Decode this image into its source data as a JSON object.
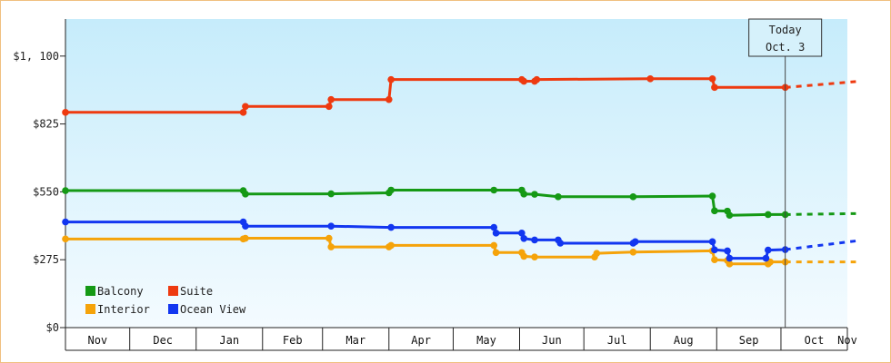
{
  "chart_data": {
    "type": "line",
    "title": "",
    "xlabel": "",
    "ylabel": "",
    "x_axis": "date",
    "xlim": [
      "2024-11-01",
      "2025-11-01"
    ],
    "x_tick_labels": [
      "Nov",
      "Dec",
      "Jan",
      "Feb",
      "Mar",
      "Apr",
      "May",
      "Jun",
      "Jul",
      "Aug",
      "Sep",
      "Oct",
      "Nov"
    ],
    "ylim": [
      0,
      1250
    ],
    "y_ticks": [
      0,
      275,
      550,
      825,
      1100
    ],
    "y_tick_labels": [
      "$0",
      "$275",
      "$550",
      "$825",
      "$1, 100"
    ],
    "step": true,
    "grid": false,
    "background": "light-blue gradient",
    "legend_position": "bottom-left",
    "today": {
      "line1": "Today",
      "line2": "Oct. 3",
      "date": "2025-10-03"
    },
    "series": [
      {
        "name": "Balcony",
        "color": "#159915",
        "points": [
          [
            "2024-11-01",
            555
          ],
          [
            "2025-01-23",
            555
          ],
          [
            "2025-01-24",
            541
          ],
          [
            "2025-03-05",
            542
          ],
          [
            "2025-04-01",
            546
          ],
          [
            "2025-04-02",
            557
          ],
          [
            "2025-05-20",
            557
          ],
          [
            "2025-06-02",
            557
          ],
          [
            "2025-06-03",
            541
          ],
          [
            "2025-06-08",
            540
          ],
          [
            "2025-06-19",
            530
          ],
          [
            "2025-07-24",
            530
          ],
          [
            "2025-08-30",
            533
          ],
          [
            "2025-08-31",
            473
          ],
          [
            "2025-09-06",
            472
          ],
          [
            "2025-09-07",
            455
          ],
          [
            "2025-09-25",
            458
          ],
          [
            "2025-10-03",
            458
          ]
        ],
        "forecast": [
          [
            "2025-10-03",
            458
          ],
          [
            "2025-11-05",
            462
          ]
        ]
      },
      {
        "name": "Suite",
        "color": "#ee3a10",
        "points": [
          [
            "2024-11-01",
            872
          ],
          [
            "2025-01-23",
            872
          ],
          [
            "2025-01-24",
            896
          ],
          [
            "2025-03-04",
            896
          ],
          [
            "2025-03-05",
            924
          ],
          [
            "2025-04-01",
            924
          ],
          [
            "2025-04-02",
            1005
          ],
          [
            "2025-06-02",
            1005
          ],
          [
            "2025-06-03",
            998
          ],
          [
            "2025-06-08",
            998
          ],
          [
            "2025-06-09",
            1005
          ],
          [
            "2025-08-01",
            1008
          ],
          [
            "2025-08-30",
            1008
          ],
          [
            "2025-08-31",
            973
          ],
          [
            "2025-10-03",
            973
          ]
        ],
        "forecast": [
          [
            "2025-10-03",
            973
          ],
          [
            "2025-11-05",
            997
          ]
        ]
      },
      {
        "name": "Interior",
        "color": "#f5a30a",
        "points": [
          [
            "2024-11-01",
            359
          ],
          [
            "2025-01-23",
            359
          ],
          [
            "2025-01-24",
            362
          ],
          [
            "2025-03-04",
            362
          ],
          [
            "2025-03-05",
            327
          ],
          [
            "2025-04-01",
            327
          ],
          [
            "2025-04-02",
            333
          ],
          [
            "2025-05-20",
            333
          ],
          [
            "2025-05-21",
            304
          ],
          [
            "2025-06-02",
            304
          ],
          [
            "2025-06-03",
            289
          ],
          [
            "2025-06-08",
            286
          ],
          [
            "2025-07-06",
            286
          ],
          [
            "2025-07-07",
            301
          ],
          [
            "2025-07-24",
            306
          ],
          [
            "2025-08-30",
            311
          ],
          [
            "2025-08-31",
            275
          ],
          [
            "2025-09-06",
            272
          ],
          [
            "2025-09-07",
            258
          ],
          [
            "2025-09-25",
            258
          ],
          [
            "2025-09-26",
            266
          ],
          [
            "2025-10-03",
            266
          ]
        ],
        "forecast": [
          [
            "2025-10-03",
            266
          ],
          [
            "2025-11-05",
            266
          ]
        ]
      },
      {
        "name": "Ocean View",
        "color": "#1236f0",
        "points": [
          [
            "2024-11-01",
            428
          ],
          [
            "2025-01-23",
            428
          ],
          [
            "2025-01-24",
            411
          ],
          [
            "2025-03-05",
            411
          ],
          [
            "2025-04-02",
            406
          ],
          [
            "2025-05-20",
            406
          ],
          [
            "2025-05-21",
            383
          ],
          [
            "2025-06-02",
            383
          ],
          [
            "2025-06-03",
            361
          ],
          [
            "2025-06-08",
            355
          ],
          [
            "2025-06-19",
            355
          ],
          [
            "2025-06-20",
            342
          ],
          [
            "2025-07-24",
            342
          ],
          [
            "2025-07-25",
            348
          ],
          [
            "2025-08-30",
            348
          ],
          [
            "2025-08-31",
            315
          ],
          [
            "2025-09-06",
            311
          ],
          [
            "2025-09-07",
            281
          ],
          [
            "2025-09-24",
            281
          ],
          [
            "2025-09-25",
            314
          ],
          [
            "2025-10-03",
            316
          ]
        ],
        "forecast": [
          [
            "2025-10-03",
            316
          ],
          [
            "2025-11-05",
            351
          ]
        ]
      }
    ],
    "legend": [
      {
        "name": "Balcony",
        "color": "#159915"
      },
      {
        "name": "Suite",
        "color": "#ee3a10"
      },
      {
        "name": "Interior",
        "color": "#f5a30a"
      },
      {
        "name": "Ocean View",
        "color": "#1236f0"
      }
    ]
  }
}
